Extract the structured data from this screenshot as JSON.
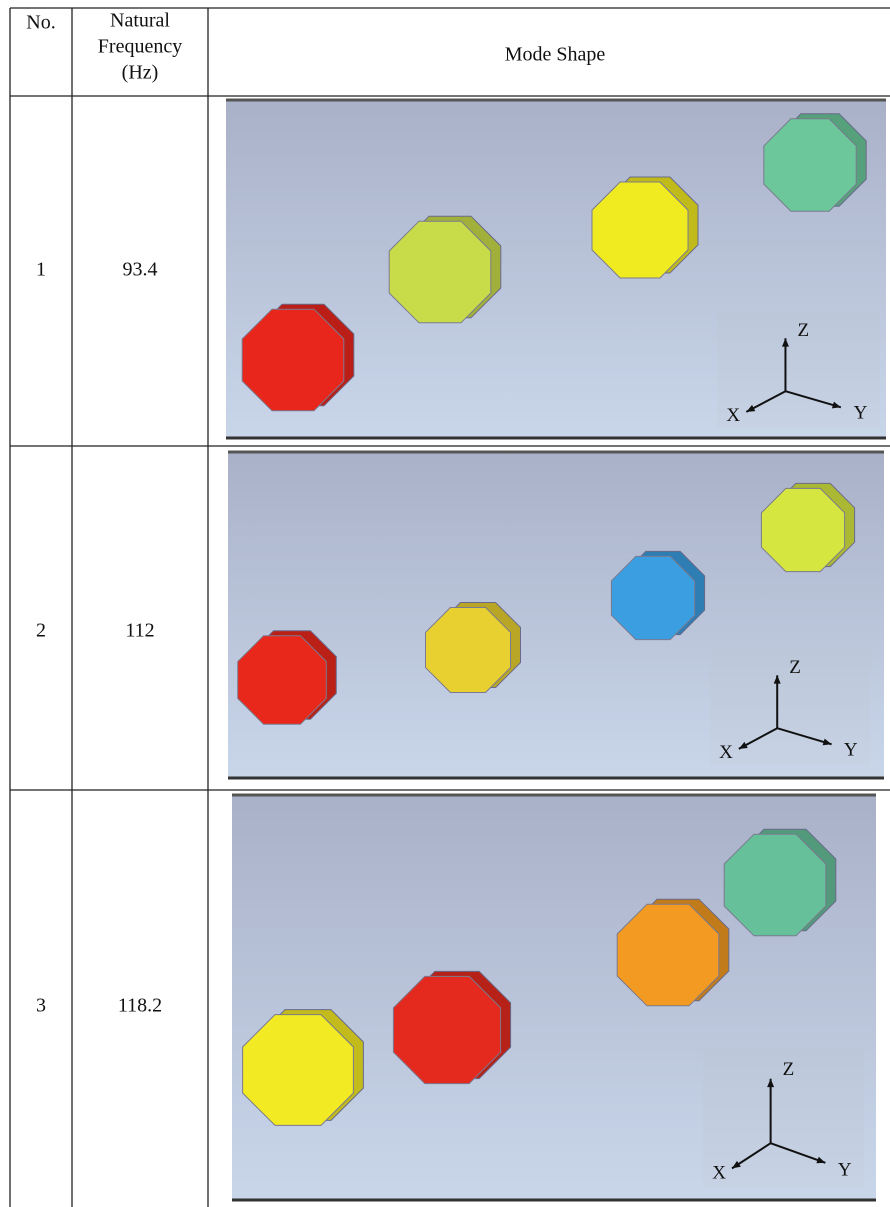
{
  "table": {
    "header": {
      "no": "No.",
      "frequency": [
        "Natural",
        "Frequency",
        "(Hz)"
      ],
      "mode_shape": "Mode Shape"
    },
    "rows": [
      {
        "no": "1",
        "frequency": 93.4,
        "axes": {
          "z": "Z",
          "x": "X",
          "y": "Y"
        }
      },
      {
        "no": "2",
        "frequency": 112,
        "axes": {
          "z": "Z",
          "x": "X",
          "y": "Y"
        }
      },
      {
        "no": "3",
        "frequency": 118.2,
        "axes": {
          "z": "Z",
          "x": "X",
          "y": "Y"
        }
      }
    ]
  }
}
